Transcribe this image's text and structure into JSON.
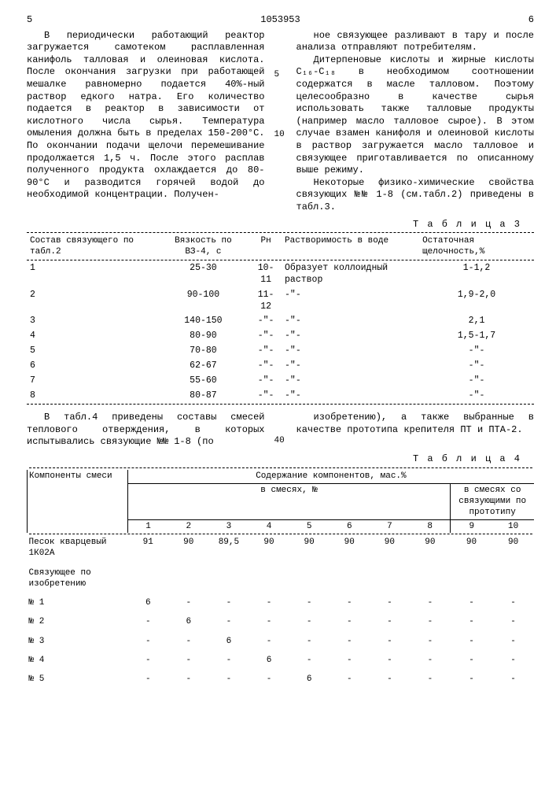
{
  "header": {
    "left_pagenum": "5",
    "docnum": "1053953",
    "right_pagenum": "6"
  },
  "left_text": "В периодически работающий реактор загружается самотеком расплавленная канифоль талловая и олеиновая кислота. После окончания загрузки при работающей мешалке равномерно подается 40%-ный раствор едкого натра. Его количество подается в реактор в зависимости от кислотного числа сырья. Температура омыления должна быть в пределах 150-200°С. По окончании подачи щелочи перемешивание продолжается 1,5 ч. После этого расплав полученного продукта охлаждается до 80-90°С и разводится горячей водой до необходимой концентрации. Получен-",
  "right_text_p1": "ное связующее разливают в тару и после анализа отправляют потребителям.",
  "right_text_p2": "Дитерпеновые кислоты и жирные кислоты C₁₆-C₁₈ в необходимом соотношении содержатся в масле талловом. Поэтому целесообразно в качестве сырья использовать также талловые продукты (например масло талловое сырое). В этом случае взамен канифоля и олеиновой кислоты в раствор загружается масло талловое и связующее приготавливается по описанному выше режиму.",
  "right_text_p3": "Некоторые физико-химические свойства связующих №№ 1-8 (см.табл.2) приведены в табл.3.",
  "linenums": {
    "five": "5",
    "ten": "10"
  },
  "table3": {
    "label": "Т а б л и ц а  3",
    "headers": {
      "c1": "Состав связующего по табл.2",
      "c2": "Вязкость по ВЗ-4, с",
      "c3": "Pн",
      "c4": "Растворимость в воде",
      "c5": "Остаточная щелочность,%"
    },
    "rows": [
      {
        "n": "1",
        "v": "25-30",
        "p": "10-11",
        "r": "Образует коллоидный раствор",
        "q": "1-1,2"
      },
      {
        "n": "2",
        "v": "90-100",
        "p": "11-12",
        "r": "-\"-",
        "q": "1,9-2,0"
      },
      {
        "n": "3",
        "v": "140-150",
        "p": "-\"-",
        "r": "-\"-",
        "q": "2,1"
      },
      {
        "n": "4",
        "v": "80-90",
        "p": "-\"-",
        "r": "-\"-",
        "q": "1,5-1,7"
      },
      {
        "n": "5",
        "v": "70-80",
        "p": "-\"-",
        "r": "-\"-",
        "q": "-\"-"
      },
      {
        "n": "6",
        "v": "62-67",
        "p": "-\"-",
        "r": "-\"-",
        "q": "-\"-"
      },
      {
        "n": "7",
        "v": "55-60",
        "p": "-\"-",
        "r": "-\"-",
        "q": "-\"-"
      },
      {
        "n": "8",
        "v": "80-87",
        "p": "-\"-",
        "r": "-\"-",
        "q": "-\"-"
      }
    ]
  },
  "mid_left": "В табл.4 приведены составы смесей теплового отверждения, в которых испытывались связующие №№ 1-8 (по",
  "mid_right": "изобретению), а также выбранные в качестве прототипа крепителя ПТ и ПТА-2.",
  "mid_linenum": "40",
  "table4": {
    "label": "Т а б л и ц а  4",
    "head": {
      "comp": "Компоненты смеси",
      "content": "Содержание компонентов, мас.%",
      "in_mix": "в смесях, №",
      "in_proto": "в смесях со связующими по прототипу"
    },
    "cols": [
      "1",
      "2",
      "3",
      "4",
      "5",
      "6",
      "7",
      "8",
      "9",
      "10"
    ],
    "rows": [
      {
        "name": "Песок кварцевый 1К02А",
        "v": [
          "91",
          "90",
          "89,5",
          "90",
          "90",
          "90",
          "90",
          "90",
          "90",
          "90"
        ]
      },
      {
        "name": "Связующее по изобретению",
        "v": [
          "",
          "",
          "",
          "",
          "",
          "",
          "",
          "",
          "",
          ""
        ]
      },
      {
        "name": "№ 1",
        "v": [
          "6",
          "-",
          "-",
          "-",
          "-",
          "-",
          "-",
          "-",
          "-",
          "-"
        ]
      },
      {
        "name": "№ 2",
        "v": [
          "-",
          "6",
          "-",
          "-",
          "-",
          "-",
          "-",
          "-",
          "-",
          "-"
        ]
      },
      {
        "name": "№ 3",
        "v": [
          "-",
          "-",
          "6",
          "-",
          "-",
          "-",
          "-",
          "-",
          "-",
          "-"
        ]
      },
      {
        "name": "№ 4",
        "v": [
          "-",
          "-",
          "-",
          "6",
          "-",
          "-",
          "-",
          "-",
          "-",
          "-"
        ]
      },
      {
        "name": "№ 5",
        "v": [
          "-",
          "-",
          "-",
          "-",
          "6",
          "-",
          "-",
          "-",
          "-",
          "-"
        ]
      }
    ]
  }
}
